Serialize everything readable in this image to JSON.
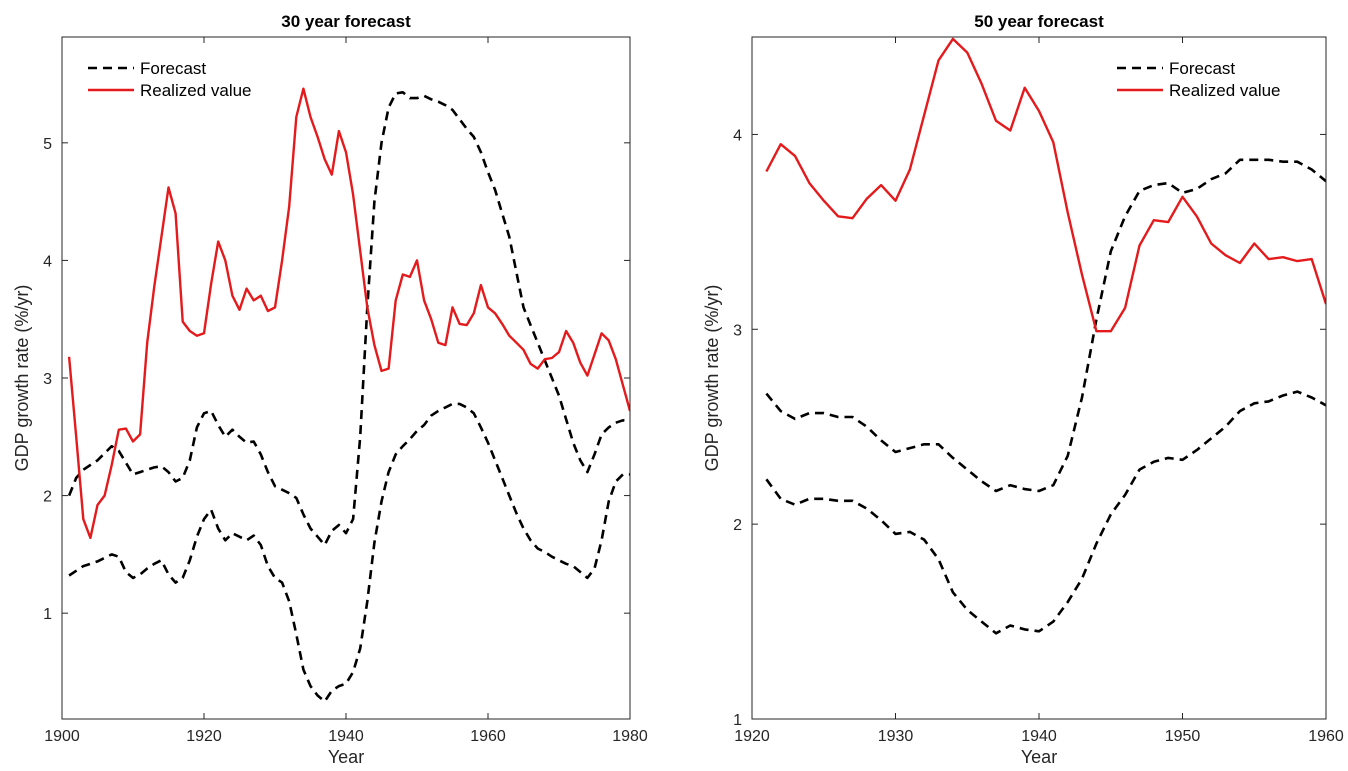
{
  "chart_data": [
    {
      "type": "line",
      "title": "30 year forecast",
      "xlabel": "Year",
      "ylabel": "GDP growth rate (%/yr)",
      "xlim": [
        1900,
        1980
      ],
      "ylim": [
        0.1,
        5.9
      ],
      "xticks": [
        1900,
        1920,
        1940,
        1960,
        1980
      ],
      "yticks": [
        1,
        2,
        3,
        4,
        5
      ],
      "grid": false,
      "legend": "top-left",
      "series": [
        {
          "name": "Forecast",
          "color": "#000000",
          "dash": "dashed",
          "x": [
            1901,
            1902,
            1903,
            1904,
            1905,
            1906,
            1907,
            1908,
            1909,
            1910,
            1911,
            1912,
            1913,
            1914,
            1915,
            1916,
            1917,
            1918,
            1919,
            1920,
            1921,
            1922,
            1923,
            1924,
            1925,
            1926,
            1927,
            1928,
            1929,
            1930,
            1931,
            1932,
            1933,
            1934,
            1935,
            1936,
            1937,
            1938,
            1939,
            1940,
            1941,
            1942,
            1943,
            1944,
            1945,
            1946,
            1947,
            1948,
            1949,
            1950,
            1951,
            1952,
            1953,
            1954,
            1955,
            1956,
            1957,
            1958,
            1959,
            1960,
            1961,
            1962,
            1963,
            1964,
            1965,
            1966,
            1967,
            1968,
            1969,
            1970,
            1971,
            1972,
            1973,
            1974,
            1975,
            1976,
            1977,
            1978,
            1979,
            1980
          ],
          "y": [
            2.0,
            2.15,
            2.22,
            2.26,
            2.3,
            2.36,
            2.42,
            2.38,
            2.28,
            2.18,
            2.2,
            2.22,
            2.24,
            2.25,
            2.2,
            2.12,
            2.15,
            2.3,
            2.58,
            2.7,
            2.72,
            2.6,
            2.5,
            2.56,
            2.5,
            2.45,
            2.46,
            2.35,
            2.2,
            2.08,
            2.05,
            2.02,
            1.98,
            1.84,
            1.72,
            1.65,
            1.58,
            1.7,
            1.75,
            1.68,
            1.8,
            2.5,
            3.6,
            4.5,
            5.0,
            5.3,
            5.42,
            5.43,
            5.38,
            5.38,
            5.4,
            5.37,
            5.35,
            5.32,
            5.28,
            5.2,
            5.12,
            5.05,
            4.92,
            4.75,
            4.6,
            4.4,
            4.2,
            3.9,
            3.6,
            3.45,
            3.3,
            3.15,
            3.0,
            2.85,
            2.65,
            2.45,
            2.3,
            2.2,
            2.35,
            2.52,
            2.58,
            2.62,
            2.64,
            2.63
          ]
        },
        {
          "name": "",
          "color": "#000000",
          "dash": "dashed",
          "x": [
            1901,
            1902,
            1903,
            1904,
            1905,
            1906,
            1907,
            1908,
            1909,
            1910,
            1911,
            1912,
            1913,
            1914,
            1915,
            1916,
            1917,
            1918,
            1919,
            1920,
            1921,
            1922,
            1923,
            1924,
            1925,
            1926,
            1927,
            1928,
            1929,
            1930,
            1931,
            1932,
            1933,
            1934,
            1935,
            1936,
            1937,
            1938,
            1939,
            1940,
            1941,
            1942,
            1943,
            1944,
            1945,
            1946,
            1947,
            1948,
            1949,
            1950,
            1951,
            1952,
            1953,
            1954,
            1955,
            1956,
            1957,
            1958,
            1959,
            1960,
            1961,
            1962,
            1963,
            1964,
            1965,
            1966,
            1967,
            1968,
            1969,
            1970,
            1971,
            1972,
            1973,
            1974,
            1975,
            1976,
            1977,
            1978,
            1979,
            1980
          ],
          "y": [
            1.32,
            1.36,
            1.4,
            1.42,
            1.44,
            1.47,
            1.5,
            1.48,
            1.35,
            1.3,
            1.33,
            1.38,
            1.42,
            1.45,
            1.33,
            1.26,
            1.3,
            1.45,
            1.65,
            1.8,
            1.88,
            1.72,
            1.62,
            1.68,
            1.65,
            1.62,
            1.66,
            1.58,
            1.4,
            1.3,
            1.26,
            1.1,
            0.82,
            0.52,
            0.38,
            0.3,
            0.25,
            0.34,
            0.38,
            0.4,
            0.5,
            0.7,
            1.1,
            1.6,
            1.95,
            2.2,
            2.35,
            2.42,
            2.48,
            2.55,
            2.6,
            2.68,
            2.72,
            2.75,
            2.78,
            2.78,
            2.75,
            2.7,
            2.58,
            2.45,
            2.3,
            2.15,
            2.0,
            1.85,
            1.72,
            1.62,
            1.55,
            1.52,
            1.48,
            1.45,
            1.42,
            1.4,
            1.35,
            1.3,
            1.38,
            1.62,
            1.95,
            2.12,
            2.18,
            2.18
          ]
        },
        {
          "name": "Realized value",
          "color": "#e41a1c",
          "dash": "solid",
          "x": [
            1901,
            1902,
            1903,
            1904,
            1905,
            1906,
            1907,
            1908,
            1909,
            1910,
            1911,
            1912,
            1913,
            1914,
            1915,
            1916,
            1917,
            1918,
            1919,
            1920,
            1921,
            1922,
            1923,
            1924,
            1925,
            1926,
            1927,
            1928,
            1929,
            1930,
            1931,
            1932,
            1933,
            1934,
            1935,
            1936,
            1937,
            1938,
            1939,
            1940,
            1941,
            1942,
            1943,
            1944,
            1945,
            1946,
            1947,
            1948,
            1949,
            1950,
            1951,
            1952,
            1953,
            1954,
            1955,
            1956,
            1957,
            1958,
            1959,
            1960,
            1961,
            1962,
            1963,
            1964,
            1965,
            1966,
            1967,
            1968,
            1969,
            1970,
            1971,
            1972,
            1973,
            1974,
            1975,
            1976,
            1977,
            1978,
            1979,
            1980
          ],
          "y": [
            3.18,
            2.5,
            1.8,
            1.64,
            1.92,
            2.0,
            2.26,
            2.56,
            2.57,
            2.46,
            2.52,
            3.3,
            3.78,
            4.2,
            4.62,
            4.4,
            3.48,
            3.4,
            3.36,
            3.38,
            3.8,
            4.16,
            4.0,
            3.7,
            3.58,
            3.76,
            3.66,
            3.7,
            3.57,
            3.6,
            4.0,
            4.46,
            5.22,
            5.46,
            5.22,
            5.05,
            4.86,
            4.73,
            5.1,
            4.92,
            4.56,
            4.08,
            3.6,
            3.28,
            3.06,
            3.08,
            3.66,
            3.88,
            3.86,
            4.0,
            3.66,
            3.5,
            3.3,
            3.28,
            3.6,
            3.46,
            3.45,
            3.55,
            3.79,
            3.6,
            3.55,
            3.46,
            3.36,
            3.3,
            3.24,
            3.12,
            3.08,
            3.16,
            3.17,
            3.22,
            3.4,
            3.3,
            3.13,
            3.02,
            3.2,
            3.38,
            3.32,
            3.16,
            2.94,
            2.72
          ]
        }
      ]
    },
    {
      "type": "line",
      "title": "50 year forecast",
      "xlabel": "Year",
      "ylabel": "GDP growth rate (%/yr)",
      "xlim": [
        1920,
        1960
      ],
      "ylim": [
        1,
        4.5
      ],
      "xticks": [
        1920,
        1930,
        1940,
        1950,
        1960
      ],
      "yticks": [
        1,
        2,
        3,
        4
      ],
      "grid": false,
      "legend": "top-right",
      "series": [
        {
          "name": "Forecast",
          "color": "#000000",
          "dash": "dashed",
          "x": [
            1921,
            1922,
            1923,
            1924,
            1925,
            1926,
            1927,
            1928,
            1929,
            1930,
            1931,
            1932,
            1933,
            1934,
            1935,
            1936,
            1937,
            1938,
            1939,
            1940,
            1941,
            1942,
            1943,
            1944,
            1945,
            1946,
            1947,
            1948,
            1949,
            1950,
            1951,
            1952,
            1953,
            1954,
            1955,
            1956,
            1957,
            1958,
            1959,
            1960
          ],
          "y": [
            2.67,
            2.58,
            2.54,
            2.57,
            2.57,
            2.55,
            2.55,
            2.5,
            2.43,
            2.37,
            2.39,
            2.41,
            2.41,
            2.34,
            2.28,
            2.22,
            2.17,
            2.2,
            2.18,
            2.17,
            2.2,
            2.35,
            2.65,
            3.05,
            3.4,
            3.58,
            3.71,
            3.74,
            3.75,
            3.7,
            3.72,
            3.77,
            3.8,
            3.87,
            3.87,
            3.87,
            3.86,
            3.86,
            3.82,
            3.76
          ]
        },
        {
          "name": "",
          "color": "#000000",
          "dash": "dashed",
          "x": [
            1921,
            1922,
            1923,
            1924,
            1925,
            1926,
            1927,
            1928,
            1929,
            1930,
            1931,
            1932,
            1933,
            1934,
            1935,
            1936,
            1937,
            1938,
            1939,
            1940,
            1941,
            1942,
            1943,
            1944,
            1945,
            1946,
            1947,
            1948,
            1949,
            1950,
            1951,
            1952,
            1953,
            1954,
            1955,
            1956,
            1957,
            1958,
            1959,
            1960
          ],
          "y": [
            2.23,
            2.13,
            2.1,
            2.13,
            2.13,
            2.12,
            2.12,
            2.08,
            2.02,
            1.95,
            1.96,
            1.92,
            1.82,
            1.65,
            1.56,
            1.5,
            1.44,
            1.48,
            1.46,
            1.45,
            1.5,
            1.6,
            1.72,
            1.9,
            2.05,
            2.15,
            2.28,
            2.32,
            2.34,
            2.33,
            2.38,
            2.44,
            2.5,
            2.58,
            2.62,
            2.63,
            2.66,
            2.68,
            2.65,
            2.61
          ]
        },
        {
          "name": "Realized value",
          "color": "#e41a1c",
          "dash": "solid",
          "x": [
            1921,
            1922,
            1923,
            1924,
            1925,
            1926,
            1927,
            1928,
            1929,
            1930,
            1931,
            1932,
            1933,
            1934,
            1935,
            1936,
            1937,
            1938,
            1939,
            1940,
            1941,
            1942,
            1943,
            1944,
            1945,
            1946,
            1947,
            1948,
            1949,
            1950,
            1951,
            1952,
            1953,
            1954,
            1955,
            1956,
            1957,
            1958,
            1959,
            1960
          ],
          "y": [
            3.81,
            3.95,
            3.89,
            3.75,
            3.66,
            3.58,
            3.57,
            3.67,
            3.74,
            3.66,
            3.82,
            4.1,
            4.38,
            4.49,
            4.42,
            4.26,
            4.07,
            4.02,
            4.24,
            4.12,
            3.96,
            3.6,
            3.28,
            2.99,
            2.99,
            3.11,
            3.43,
            3.56,
            3.55,
            3.68,
            3.58,
            3.44,
            3.38,
            3.34,
            3.44,
            3.36,
            3.37,
            3.35,
            3.36,
            3.13
          ]
        }
      ]
    }
  ]
}
